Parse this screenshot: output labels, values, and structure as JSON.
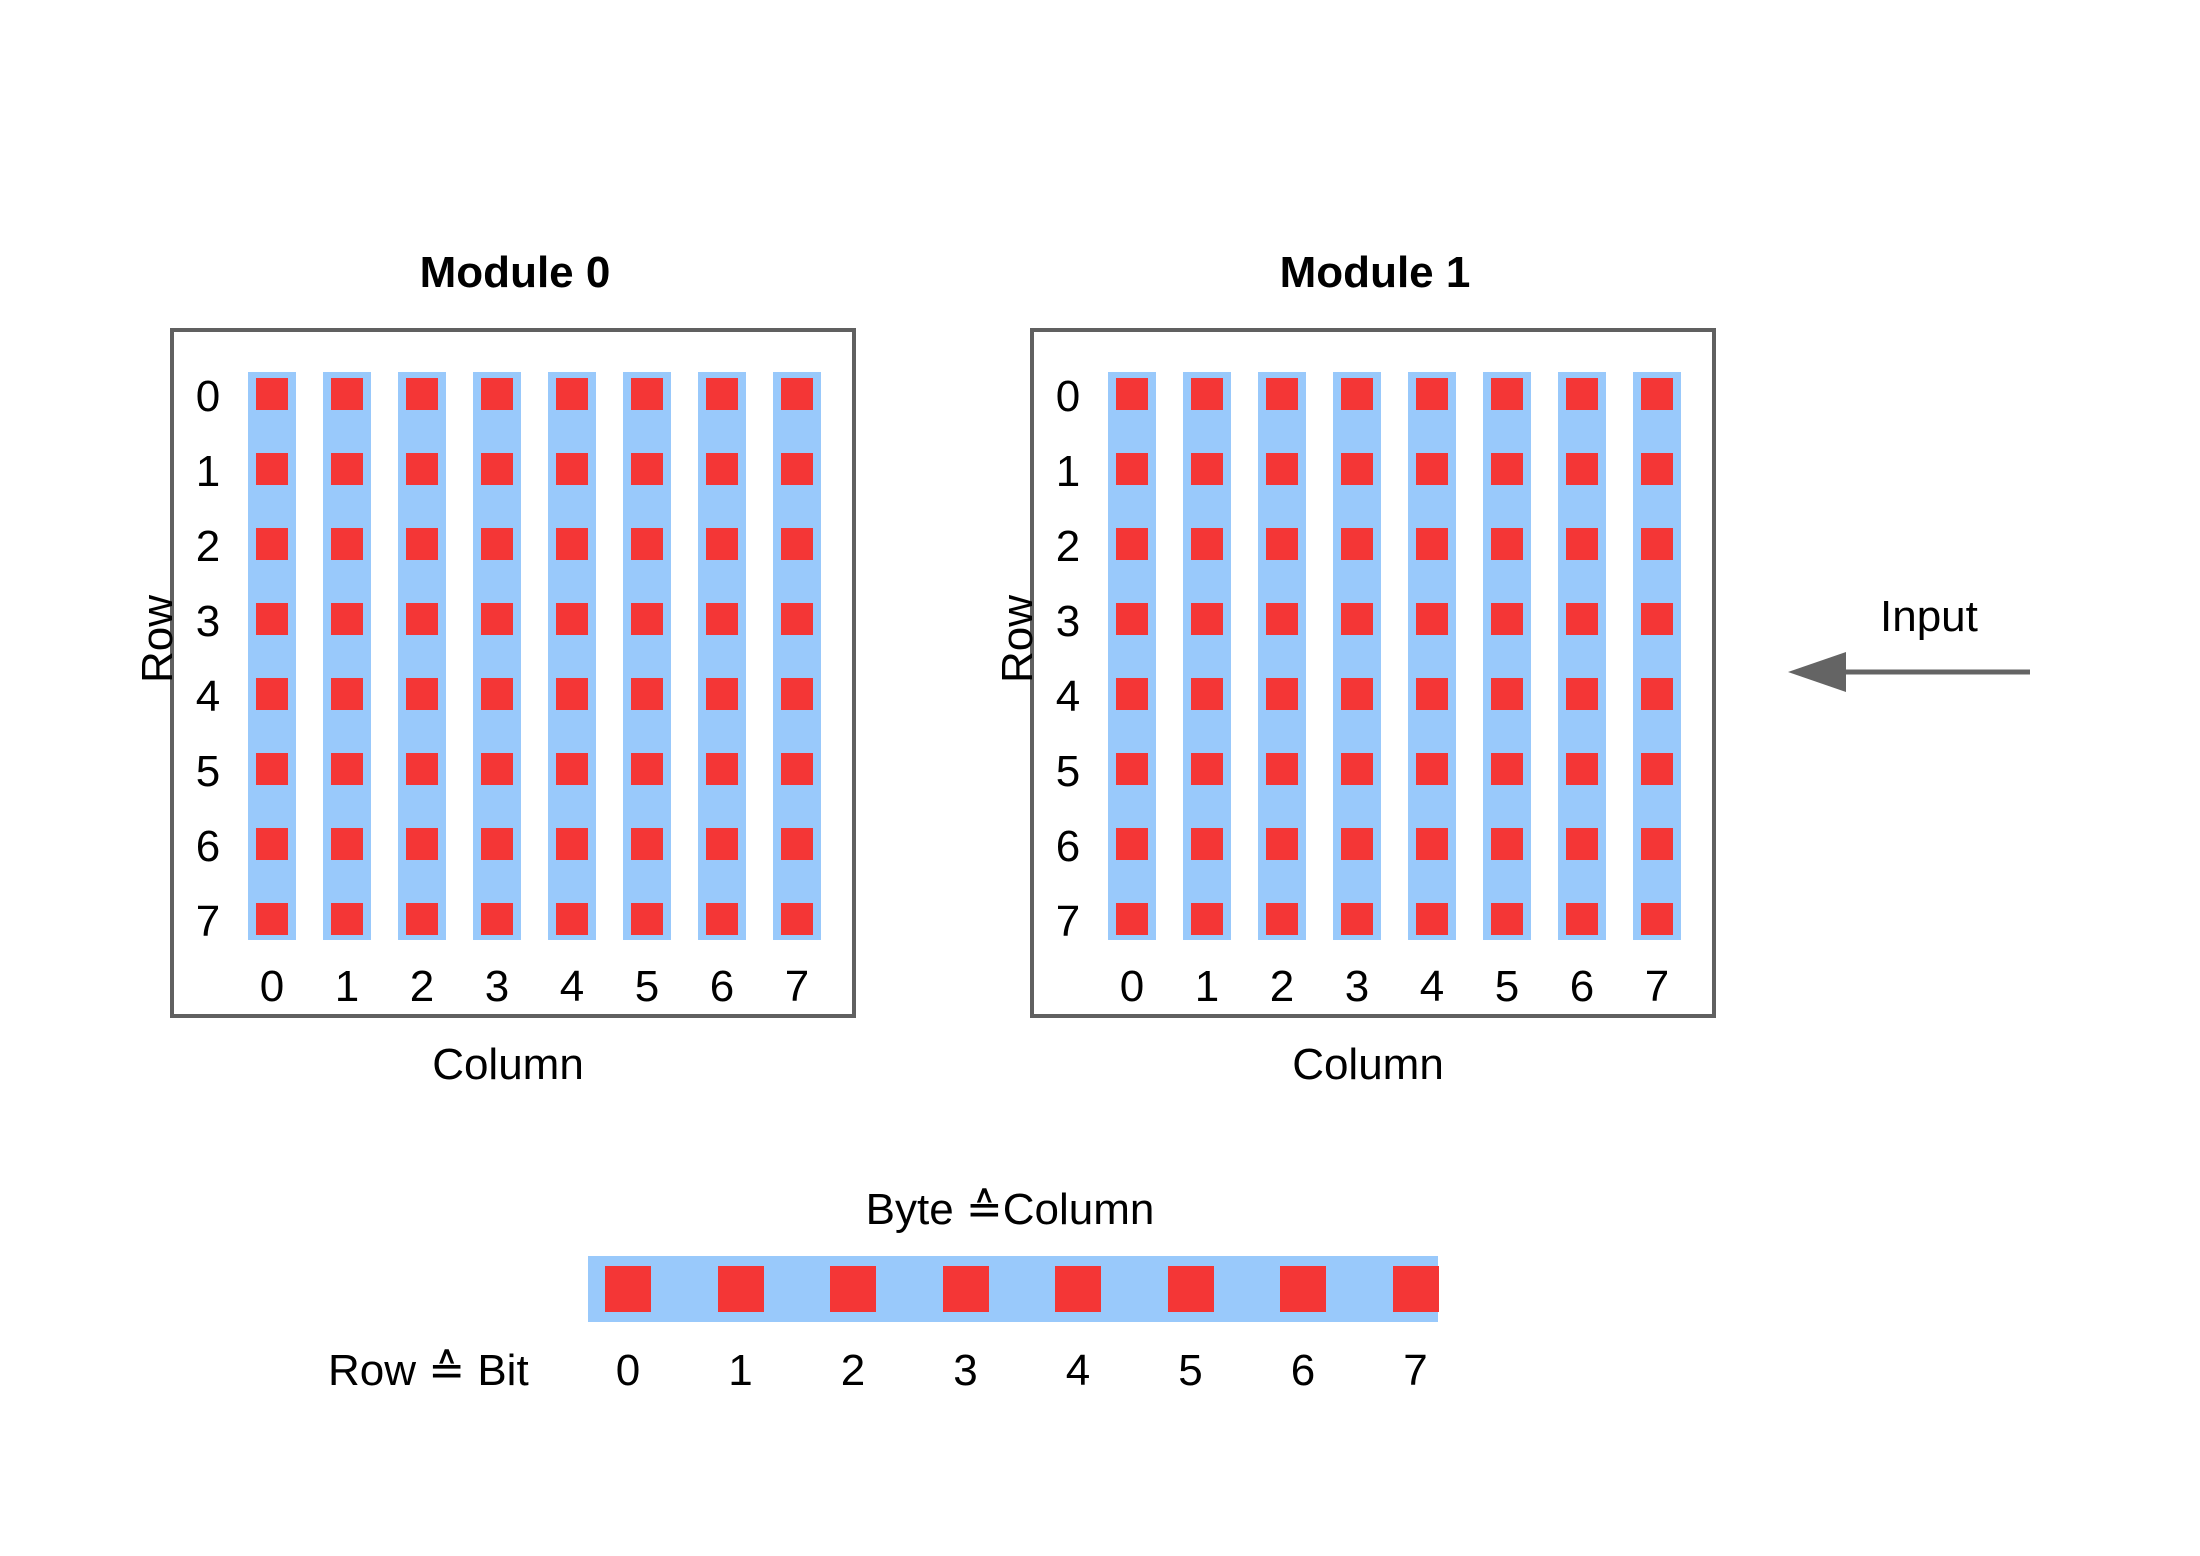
{
  "modules": [
    {
      "title": "Module 0",
      "row_axis": "Row",
      "column_axis": "Column"
    },
    {
      "title": "Module 1",
      "row_axis": "Row",
      "column_axis": "Column"
    }
  ],
  "row_indices": [
    "0",
    "1",
    "2",
    "3",
    "4",
    "5",
    "6",
    "7"
  ],
  "column_indices": [
    "0",
    "1",
    "2",
    "3",
    "4",
    "5",
    "6",
    "7"
  ],
  "input_label": "Input",
  "legend": {
    "title": "Byte ≙Column",
    "row_label": "Row ≙ Bit",
    "bit_indices": [
      "0",
      "1",
      "2",
      "3",
      "4",
      "5",
      "6",
      "7"
    ]
  },
  "colors": {
    "strip": "#99c9fb",
    "bit": "#f43636",
    "frame": "#606060",
    "arrow": "#646464"
  }
}
